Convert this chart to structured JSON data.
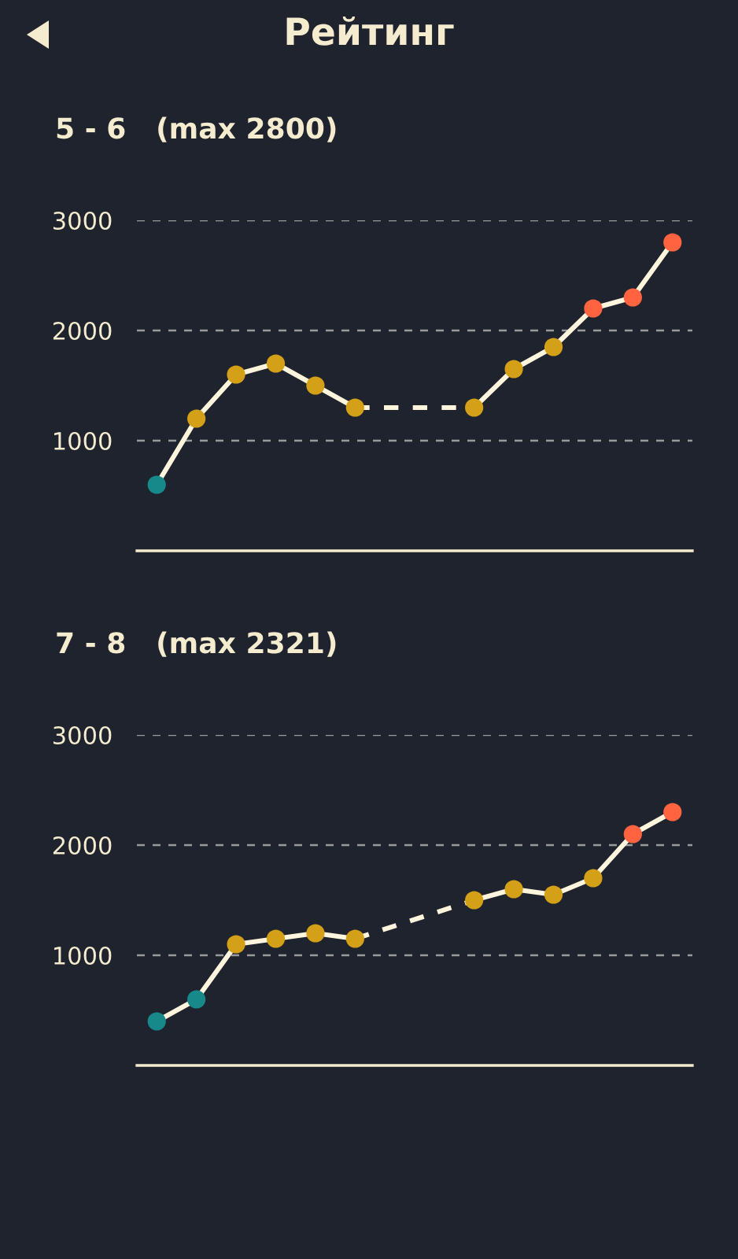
{
  "chart_data": [
    {
      "type": "line",
      "title": "Рейтинг",
      "subtitle": "5 - 6   (max 2800)",
      "categories": [
        null,
        null,
        null,
        null,
        null,
        null,
        null,
        null,
        null,
        null,
        null,
        null,
        null,
        null
      ],
      "ylim": [
        0,
        3000
      ],
      "yticks": [
        1000,
        2000,
        3000
      ],
      "grid": "y",
      "tick_labels": "y",
      "marker": "circle",
      "series": [
        {
          "color": "#fff5dc",
          "line_style": "dashed",
          "marker": "none",
          "values": [
            null,
            null,
            null,
            null,
            null,
            1300,
            null,
            null,
            1300,
            null,
            null,
            null,
            null,
            null
          ]
        },
        {
          "color": "#fff5dc",
          "line_style": "solid",
          "values": [
            600,
            1200,
            1600,
            1700,
            1500,
            1300,
            null,
            null,
            1300,
            1650,
            1850,
            2200,
            2300,
            2800
          ],
          "colors": [
            "#17898a",
            "#d4a017",
            "#d4a017",
            "#d4a017",
            "#d4a017",
            "#d4a017",
            null,
            null,
            "#d4a017",
            "#d4a017",
            "#d4a017",
            "#ff6340",
            "#ff6340",
            "#ff6340"
          ]
        }
      ]
    },
    {
      "type": "line",
      "title": "7 - 8   (max 2321)",
      "categories": [
        null,
        null,
        null,
        null,
        null,
        null,
        null,
        null,
        null,
        null,
        null,
        null,
        null,
        null
      ],
      "ylim": [
        0,
        3000
      ],
      "yticks": [
        1000,
        2000,
        3000
      ],
      "grid": "y",
      "tick_labels": "y",
      "marker": "circle",
      "series": [
        {
          "color": "#fff5dc",
          "line_style": "dashed",
          "marker": "none",
          "values": [
            null,
            null,
            null,
            null,
            null,
            1150,
            null,
            null,
            1500,
            null,
            null,
            null,
            null,
            null
          ]
        },
        {
          "color": "#fff5dc",
          "line_style": "solid",
          "values": [
            400,
            600,
            1100,
            1150,
            1200,
            1150,
            null,
            null,
            1500,
            1600,
            1550,
            1700,
            2100,
            2300
          ],
          "colors": [
            "#17898a",
            "#17898a",
            "#d4a017",
            "#d4a017",
            "#d4a017",
            "#d4a017",
            null,
            null,
            "#d4a017",
            "#d4a017",
            "#d4a017",
            "#d4a017",
            "#ff6340",
            "#ff6340"
          ]
        }
      ]
    }
  ]
}
